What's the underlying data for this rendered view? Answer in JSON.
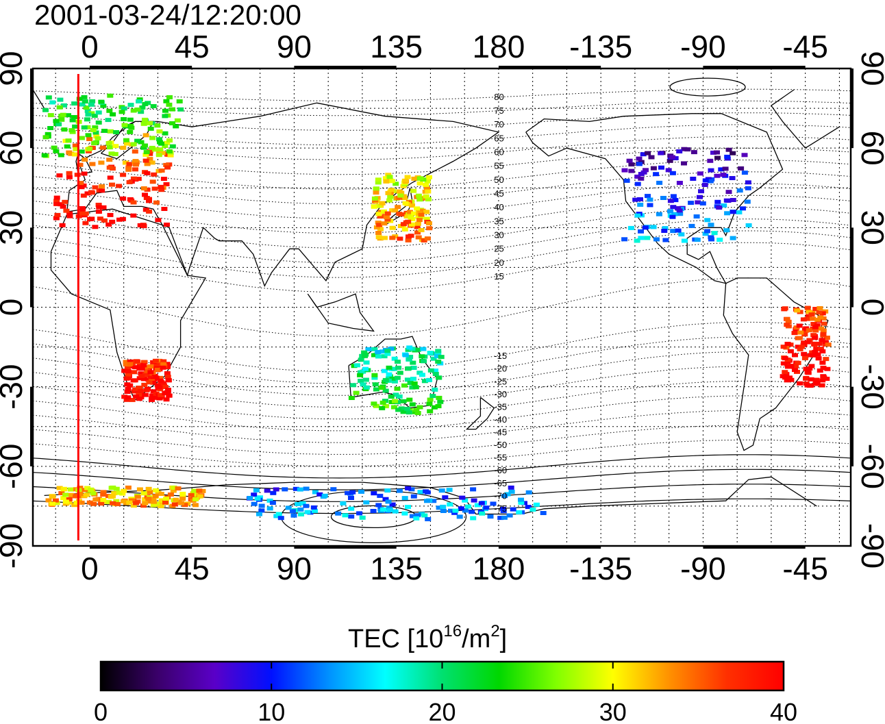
{
  "title": "2001-03-24/12:20:00",
  "longitude_tick_labels": [
    "0",
    "45",
    "90",
    "135",
    "180",
    "-135",
    "-90",
    "-45"
  ],
  "latitude_tick_labels": [
    "90",
    "60",
    "30",
    "0",
    "-30",
    "-60",
    "-90"
  ],
  "contour_labels": [
    "80",
    "75",
    "70",
    "65",
    "60",
    "55",
    "50",
    "45",
    "40",
    "35",
    "30",
    "25",
    "20",
    "15",
    "-15",
    "-20",
    "-25",
    "-30",
    "-35",
    "-40",
    "-45",
    "-50",
    "-55",
    "-60",
    "-65",
    "-70",
    "-75"
  ],
  "colorbar": {
    "label_main": "TEC  [10",
    "label_exp1": "16",
    "label_mid": "/m",
    "label_exp2": "2",
    "label_end": "]",
    "min": 0,
    "max": 40,
    "ticks": [
      "0",
      "10",
      "20",
      "30",
      "40"
    ],
    "colors": [
      "#000000",
      "#3a006a",
      "#5a00c8",
      "#0010ff",
      "#0090ff",
      "#00ffff",
      "#00e070",
      "#00d800",
      "#80ff00",
      "#ffff00",
      "#ff9000",
      "#ff3000",
      "#ff0000"
    ]
  },
  "map": {
    "lon_range": [
      -25,
      335
    ],
    "lat_range": [
      -90,
      90
    ],
    "terminator_longitude": -5,
    "terminator_color": "#ff0000",
    "tec_regions": [
      {
        "name": "europe",
        "lon": [
          -15,
          35
        ],
        "lat": [
          30,
          65
        ],
        "tec": 37
      },
      {
        "name": "northern-europe",
        "lon": [
          -20,
          40
        ],
        "lat": [
          57,
          80
        ],
        "tec": 24
      },
      {
        "name": "east-asia",
        "lon": [
          125,
          150
        ],
        "lat": [
          25,
          50
        ],
        "tec": 32
      },
      {
        "name": "north-america",
        "lon": [
          -125,
          -70
        ],
        "lat": [
          25,
          60
        ],
        "tec": 10
      },
      {
        "name": "south-america",
        "lon": [
          -55,
          -35
        ],
        "lat": [
          -30,
          0
        ],
        "tec": 39
      },
      {
        "name": "southern-africa",
        "lon": [
          15,
          35
        ],
        "lat": [
          -35,
          -20
        ],
        "tec": 39
      },
      {
        "name": "australia",
        "lon": [
          115,
          155
        ],
        "lat": [
          -40,
          -15
        ],
        "tec": 21
      },
      {
        "name": "antarctica-east",
        "lon": [
          70,
          200
        ],
        "lat": [
          -80,
          -68
        ],
        "tec": 13
      },
      {
        "name": "antarctica-west",
        "lon": [
          -20,
          50
        ],
        "lat": [
          -75,
          -68
        ],
        "tec": 32
      }
    ]
  }
}
